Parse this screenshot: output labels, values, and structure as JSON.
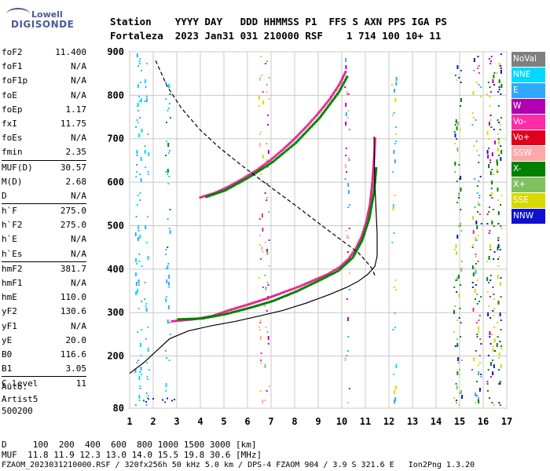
{
  "logo": {
    "line1": "Lowell",
    "line2": "DIGISONDE"
  },
  "header": {
    "row1": "Station    YYYY DAY   DDD HHMMSS P1  FFS S AXN PPS IGA PS",
    "row2": "Fortaleza  2023 Jan31 031 210000 RSF    1 714 100 10+ 11"
  },
  "params": [
    {
      "label": "foF2",
      "value": "11.400"
    },
    {
      "label": "foF1",
      "value": "N/A"
    },
    {
      "label": "foF1p",
      "value": "N/A"
    },
    {
      "label": "foE",
      "value": "N/A"
    },
    {
      "label": "foEp",
      "value": "1.17"
    },
    {
      "label": "fxI",
      "value": "11.75"
    },
    {
      "label": "foEs",
      "value": "N/A"
    },
    {
      "label": "fmin",
      "value": "2.35"
    },
    {
      "label": "MUF(D)",
      "value": "30.57"
    },
    {
      "label": "M(D)",
      "value": "2.68"
    },
    {
      "label": "D",
      "value": "N/A"
    },
    {
      "label": "h`F",
      "value": "275.0"
    },
    {
      "label": "h`F2",
      "value": "275.0"
    },
    {
      "label": "h`E",
      "value": "N/A"
    },
    {
      "label": "h`Es",
      "value": "N/A"
    },
    {
      "label": "hmF2",
      "value": "381.7"
    },
    {
      "label": "hmF1",
      "value": "N/A"
    },
    {
      "label": "hmE",
      "value": "110.0"
    },
    {
      "label": "yF2",
      "value": "130.6"
    },
    {
      "label": "yF1",
      "value": "N/A"
    },
    {
      "label": "yE",
      "value": "20.0"
    },
    {
      "label": "B0",
      "value": "116.6"
    },
    {
      "label": "B1",
      "value": "3.05"
    },
    {
      "label": "C-level",
      "value": "11"
    }
  ],
  "auto": {
    "line1": "Auto:",
    "line2": "Artist5",
    "line3": "500200"
  },
  "legend": [
    {
      "label": "NoVal",
      "color": "#7f7f7f"
    },
    {
      "label": "NNE",
      "color": "#00d8ff"
    },
    {
      "label": "E",
      "color": "#30a8ff"
    },
    {
      "label": "W",
      "color": "#b000b0"
    },
    {
      "label": "Vo-",
      "color": "#ff2ca8"
    },
    {
      "label": "Vo+",
      "color": "#e00020"
    },
    {
      "label": "SSW",
      "color": "#ffa8a8"
    },
    {
      "label": "X-",
      "color": "#008000"
    },
    {
      "label": "X+",
      "color": "#80c060"
    },
    {
      "label": "SSE",
      "color": "#d8d800"
    },
    {
      "label": "NNW",
      "color": "#1010d0"
    }
  ],
  "footer": {
    "row1": "D     100  200  400  600  800 1000 1500 3000 [km]",
    "row2": "MUF  11.8 11.9 12.3 13.0 14.0 15.5 19.8 30.6 [MHz]",
    "row3": "FZAOM_2023031210000.RSF / 320fx256h 50 kHz 5.0 km / DPS-4 FZAOM 904 / 3.9 S 321.6 E   Ion2Png 1.3.20"
  },
  "chart_data": {
    "type": "scatter",
    "x_ticks": [
      "1",
      "2",
      "3",
      "4",
      "5",
      "6",
      "7",
      "8",
      "9",
      "10",
      "11",
      "12",
      "13",
      "14",
      "15",
      "16",
      "17"
    ],
    "y_ticks": [
      "80",
      "200",
      "300",
      "400",
      "500",
      "600",
      "700",
      "800",
      "900"
    ],
    "xlim": [
      1,
      17
    ],
    "ylim": [
      80,
      900
    ],
    "grid": true,
    "series": [
      {
        "color": "#e8288c",
        "points": [
          [
            2.8,
            280
          ],
          [
            3.2,
            282
          ],
          [
            3.8,
            285
          ],
          [
            4.5,
            292
          ],
          [
            5.2,
            305
          ],
          [
            6.0,
            318
          ],
          [
            6.8,
            332
          ],
          [
            7.5,
            346
          ],
          [
            8.2,
            360
          ],
          [
            8.8,
            374
          ],
          [
            9.4,
            388
          ],
          [
            9.9,
            404
          ],
          [
            10.3,
            424
          ],
          [
            10.6,
            448
          ],
          [
            10.85,
            476
          ],
          [
            11.05,
            510
          ],
          [
            11.2,
            550
          ],
          [
            11.3,
            600
          ],
          [
            11.38,
            660
          ],
          [
            11.42,
            705
          ]
        ]
      },
      {
        "color": "#008000",
        "points": [
          [
            3.0,
            288
          ],
          [
            4.0,
            290
          ],
          [
            5.0,
            300
          ],
          [
            6.0,
            314
          ],
          [
            7.0,
            330
          ],
          [
            8.0,
            352
          ],
          [
            9.0,
            378
          ],
          [
            9.8,
            400
          ],
          [
            10.4,
            430
          ],
          [
            10.8,
            470
          ],
          [
            11.1,
            520
          ],
          [
            11.3,
            580
          ],
          [
            11.4,
            640
          ]
        ]
      },
      {
        "color": "#e8288c",
        "points": [
          [
            4.0,
            565
          ],
          [
            4.6,
            575
          ],
          [
            5.2,
            590
          ],
          [
            5.8,
            608
          ],
          [
            6.4,
            628
          ],
          [
            7.0,
            652
          ],
          [
            7.5,
            675
          ],
          [
            8.0,
            700
          ],
          [
            8.5,
            728
          ],
          [
            9.0,
            758
          ],
          [
            9.5,
            792
          ],
          [
            9.9,
            825
          ],
          [
            10.2,
            858
          ]
        ]
      },
      {
        "color": "#008000",
        "points": [
          [
            4.2,
            570
          ],
          [
            5.0,
            585
          ],
          [
            6.0,
            615
          ],
          [
            7.0,
            650
          ],
          [
            8.0,
            695
          ],
          [
            9.0,
            752
          ],
          [
            9.8,
            810
          ],
          [
            10.2,
            850
          ]
        ]
      }
    ],
    "profile": [
      [
        1.0,
        160
      ],
      [
        1.6,
        185
      ],
      [
        2.2,
        215
      ],
      [
        2.7,
        240
      ],
      [
        3.5,
        258
      ],
      [
        4.5,
        270
      ],
      [
        5.5,
        280
      ],
      [
        6.5,
        292
      ],
      [
        7.5,
        305
      ],
      [
        8.5,
        322
      ],
      [
        9.5,
        342
      ],
      [
        10.2,
        358
      ],
      [
        10.7,
        372
      ],
      [
        11.1,
        388
      ],
      [
        11.4,
        406
      ],
      [
        11.5,
        430
      ],
      [
        11.5,
        480
      ],
      [
        11.45,
        540
      ],
      [
        11.4,
        600
      ],
      [
        11.38,
        650
      ],
      [
        11.37,
        705
      ]
    ],
    "muf_curve": [
      [
        2.1,
        880
      ],
      [
        2.6,
        820
      ],
      [
        3.2,
        770
      ],
      [
        4.0,
        720
      ],
      [
        4.8,
        680
      ],
      [
        5.6,
        645
      ],
      [
        6.4,
        612
      ],
      [
        7.2,
        580
      ],
      [
        8.0,
        548
      ],
      [
        8.8,
        515
      ],
      [
        9.6,
        482
      ],
      [
        10.2,
        458
      ],
      [
        10.7,
        438
      ],
      [
        11.0,
        420
      ],
      [
        11.3,
        400
      ],
      [
        11.4,
        385
      ]
    ]
  }
}
